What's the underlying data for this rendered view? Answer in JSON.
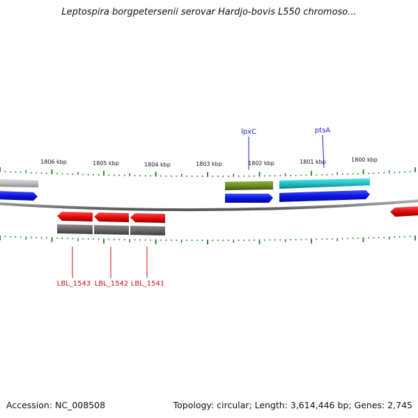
{
  "title": "Leptospira borgpetersenii serovar Hardjo-bovis L550 chromoso...",
  "footer": {
    "accession": "Accession: NC_008508",
    "summary": "Topology: circular; Length: 3,614,446 bp; Genes: 2,745"
  },
  "scale_labels": [
    "1806 kbp",
    "1805 kbp",
    "1804 kbp",
    "1803 kbp",
    "1802 kbp",
    "1801 kbp",
    "1800 kbp"
  ],
  "gene_labels": {
    "lpxC": "lpxC",
    "ptsA": "ptsA",
    "LBL_1543": "LBL_1543",
    "LBL_1542": "LBL_1542",
    "LBL_1541": "LBL_1541"
  },
  "colors": {
    "backbone": "#8a8a8a",
    "tick": "#2e8b2e",
    "cds_blue": "#0a14e6",
    "cds_red": "#e60a0a",
    "olive": "#6b8e23",
    "cyan": "#20c0c8",
    "gray_light": "#bdbdbd",
    "gray_dark": "#666666",
    "label_blue": "#1a1acc",
    "label_red": "#cc1010"
  }
}
